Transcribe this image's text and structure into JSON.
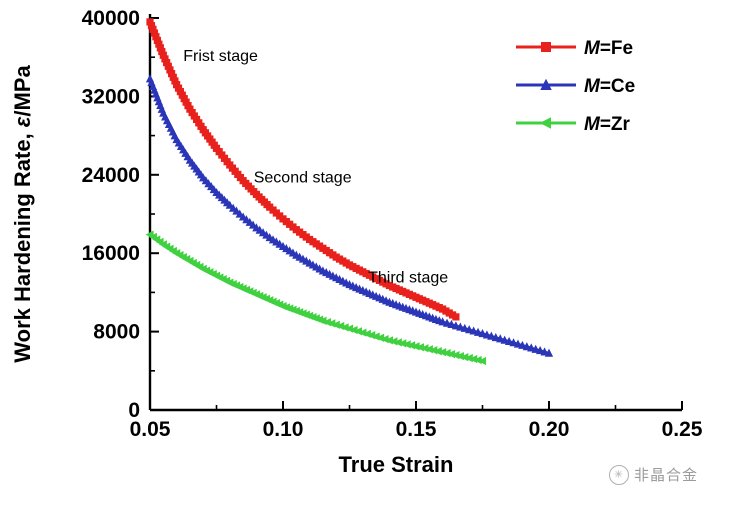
{
  "watermark": {
    "text": "非晶合金"
  },
  "chart_data": {
    "type": "scatter",
    "title": "",
    "xlabel": "True Strain",
    "ylabel": "Work Hardening Rate, ε/MPa",
    "xlim": [
      0.05,
      0.25
    ],
    "ylim": [
      0,
      40000
    ],
    "grid": false,
    "xticks": {
      "major": [
        0.05,
        0.1,
        0.15,
        0.2,
        0.25
      ],
      "labels": [
        "0.05",
        "0.10",
        "0.15",
        "0.20",
        "0.25"
      ],
      "minor": [
        0.075,
        0.125,
        0.175,
        0.225
      ]
    },
    "yticks": {
      "major": [
        0,
        8000,
        16000,
        24000,
        32000,
        40000
      ],
      "labels": [
        "0",
        "8000",
        "16000",
        "24000",
        "32000",
        "40000"
      ],
      "minor": [
        4000,
        12000,
        20000,
        28000,
        36000
      ]
    },
    "legend": {
      "position": "top-right",
      "items": [
        {
          "label": "M=Fe",
          "color": "#e8211d",
          "marker": "square"
        },
        {
          "label": "M=Ce",
          "color": "#2a35b8",
          "marker": "triangle-up"
        },
        {
          "label": "M=Zr",
          "color": "#3fd13f",
          "marker": "triangle-left"
        }
      ]
    },
    "annotations": [
      {
        "text": "Frist stage",
        "x": 0.0625,
        "y": 35600
      },
      {
        "text": "Second stage",
        "x": 0.089,
        "y": 23200
      },
      {
        "text": "Third stage",
        "x": 0.132,
        "y": 13000
      }
    ],
    "series": [
      {
        "name": "M=Fe",
        "color": "#e8211d",
        "marker": "square",
        "points": [
          [
            0.05,
            39600
          ],
          [
            0.055,
            36200
          ],
          [
            0.06,
            33200
          ],
          [
            0.065,
            30700
          ],
          [
            0.07,
            28600
          ],
          [
            0.075,
            26700
          ],
          [
            0.08,
            25000
          ],
          [
            0.085,
            23400
          ],
          [
            0.09,
            22000
          ],
          [
            0.095,
            20700
          ],
          [
            0.1,
            19500
          ],
          [
            0.105,
            18400
          ],
          [
            0.11,
            17400
          ],
          [
            0.115,
            16500
          ],
          [
            0.12,
            15600
          ],
          [
            0.125,
            14800
          ],
          [
            0.13,
            14100
          ],
          [
            0.135,
            13400
          ],
          [
            0.14,
            12700
          ],
          [
            0.145,
            12100
          ],
          [
            0.15,
            11500
          ],
          [
            0.155,
            10900
          ],
          [
            0.16,
            10300
          ],
          [
            0.165,
            9500
          ]
        ]
      },
      {
        "name": "M=Ce",
        "color": "#2a35b8",
        "marker": "triangle-up",
        "points": [
          [
            0.05,
            33800
          ],
          [
            0.055,
            30300
          ],
          [
            0.06,
            27600
          ],
          [
            0.065,
            25500
          ],
          [
            0.07,
            23700
          ],
          [
            0.075,
            22200
          ],
          [
            0.08,
            20900
          ],
          [
            0.085,
            19700
          ],
          [
            0.09,
            18600
          ],
          [
            0.095,
            17600
          ],
          [
            0.1,
            16700
          ],
          [
            0.105,
            15800
          ],
          [
            0.11,
            15000
          ],
          [
            0.115,
            14200
          ],
          [
            0.12,
            13500
          ],
          [
            0.125,
            12800
          ],
          [
            0.13,
            12200
          ],
          [
            0.135,
            11600
          ],
          [
            0.14,
            11000
          ],
          [
            0.145,
            10500
          ],
          [
            0.15,
            10000
          ],
          [
            0.155,
            9500
          ],
          [
            0.16,
            9000
          ],
          [
            0.165,
            8600
          ],
          [
            0.17,
            8200
          ],
          [
            0.175,
            7800
          ],
          [
            0.18,
            7400
          ],
          [
            0.185,
            7000
          ],
          [
            0.19,
            6600
          ],
          [
            0.195,
            6200
          ],
          [
            0.2,
            5800
          ]
        ]
      },
      {
        "name": "M=Zr",
        "color": "#3fd13f",
        "marker": "triangle-left",
        "points": [
          [
            0.05,
            17900
          ],
          [
            0.055,
            16900
          ],
          [
            0.06,
            16000
          ],
          [
            0.065,
            15200
          ],
          [
            0.07,
            14400
          ],
          [
            0.075,
            13700
          ],
          [
            0.08,
            13000
          ],
          [
            0.085,
            12400
          ],
          [
            0.09,
            11800
          ],
          [
            0.095,
            11200
          ],
          [
            0.1,
            10600
          ],
          [
            0.105,
            10100
          ],
          [
            0.11,
            9600
          ],
          [
            0.115,
            9100
          ],
          [
            0.12,
            8700
          ],
          [
            0.125,
            8300
          ],
          [
            0.13,
            7900
          ],
          [
            0.135,
            7500
          ],
          [
            0.14,
            7100
          ],
          [
            0.145,
            6800
          ],
          [
            0.15,
            6500
          ],
          [
            0.155,
            6200
          ],
          [
            0.16,
            5900
          ],
          [
            0.165,
            5600
          ],
          [
            0.17,
            5300
          ],
          [
            0.175,
            5000
          ]
        ]
      }
    ]
  }
}
